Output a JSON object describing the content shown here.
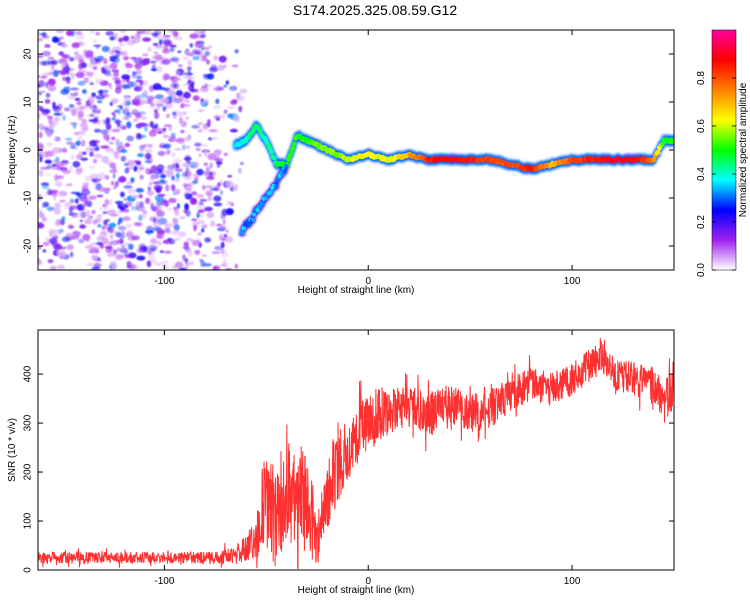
{
  "title": "S174.2025.325.08.59.G12",
  "chart_data": [
    {
      "type": "heatmap",
      "xlabel": "Height of straight line (km)",
      "ylabel": "Frequency (Hz)",
      "xlim": [
        -162,
        150
      ],
      "ylim": [
        -25,
        25
      ],
      "xticks": [
        -100,
        0,
        100
      ],
      "yticks": [
        -20,
        -10,
        0,
        10,
        20
      ],
      "colorbar": {
        "label": "Normalized spectral amplitude",
        "range": [
          0,
          1
        ],
        "ticks": [
          0.0,
          0.2,
          0.4,
          0.6,
          0.8
        ],
        "tick_labels": [
          "0.0",
          "0.2",
          "0.4",
          "0.6",
          "0.8"
        ],
        "colors": [
          "#ffffff",
          "#a020f0",
          "#0000ff",
          "#00ffff",
          "#00ff00",
          "#ffff00",
          "#ff8000",
          "#ff0000",
          "#ff00a0"
        ]
      },
      "noise_region_x": [
        -162,
        -65
      ],
      "trace": {
        "x": [
          -65,
          -60,
          -55,
          -50,
          -45,
          -40,
          -35,
          -30,
          -25,
          -20,
          -10,
          0,
          10,
          20,
          30,
          40,
          50,
          60,
          70,
          80,
          90,
          100,
          110,
          120,
          130,
          140,
          145,
          150
        ],
        "freq_hz": [
          1,
          2,
          5,
          2,
          -3,
          -3,
          3,
          2,
          1,
          0,
          -2,
          -1,
          -2,
          -1,
          -2,
          -2,
          -2,
          -2,
          -3,
          -4,
          -3,
          -2,
          -2,
          -2,
          -2,
          -2,
          2,
          2
        ],
        "amplitude": [
          0.35,
          0.4,
          0.45,
          0.4,
          0.45,
          0.5,
          0.5,
          0.5,
          0.55,
          0.55,
          0.6,
          0.65,
          0.6,
          0.7,
          0.85,
          0.9,
          0.85,
          0.8,
          0.8,
          0.85,
          0.7,
          0.8,
          0.85,
          0.9,
          0.9,
          0.75,
          0.5,
          0.5
        ]
      },
      "lower_branch": {
        "x": [
          -62,
          -55,
          -50,
          -45,
          -40
        ],
        "freq_hz": [
          -17,
          -13,
          -10,
          -7,
          -3
        ]
      }
    },
    {
      "type": "line",
      "xlabel": "Height of straight line (km)",
      "ylabel": "SNR (10 * v/v)",
      "xlim": [
        -162,
        150
      ],
      "ylim": [
        0,
        490
      ],
      "xticks": [
        -100,
        0,
        100
      ],
      "yticks": [
        0,
        100,
        200,
        300,
        400
      ],
      "series": [
        {
          "name": "SNR",
          "color": "#ff3030",
          "x": [
            -162,
            -140,
            -120,
            -100,
            -80,
            -65,
            -55,
            -50,
            -45,
            -40,
            -35,
            -30,
            -25,
            -20,
            -15,
            -10,
            -5,
            0,
            5,
            10,
            20,
            30,
            40,
            50,
            60,
            70,
            80,
            90,
            100,
            110,
            115,
            120,
            130,
            140,
            145,
            150
          ],
          "values": [
            25,
            25,
            25,
            25,
            25,
            30,
            60,
            150,
            90,
            180,
            110,
            150,
            60,
            150,
            210,
            250,
            280,
            300,
            320,
            320,
            330,
            320,
            340,
            320,
            330,
            360,
            380,
            370,
            390,
            420,
            440,
            400,
            390,
            380,
            340,
            370
          ],
          "noise_amplitude": [
            12,
            12,
            12,
            12,
            12,
            18,
            40,
            120,
            100,
            130,
            120,
            110,
            60,
            70,
            70,
            70,
            60,
            55,
            55,
            50,
            45,
            45,
            40,
            40,
            40,
            35,
            35,
            35,
            35,
            35,
            40,
            35,
            35,
            35,
            45,
            45
          ]
        }
      ]
    }
  ]
}
